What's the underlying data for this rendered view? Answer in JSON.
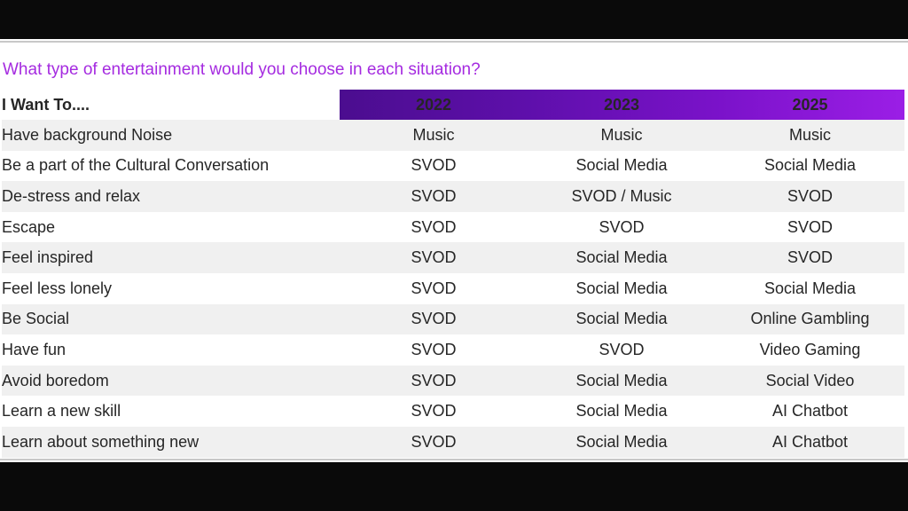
{
  "question": "What type of entertainment would you choose in each situation?",
  "colors": {
    "title": "#a52be0",
    "header_start": "#4b0d8f",
    "header_end": "#9b1ee6",
    "row_shade": "#f0f0f0"
  },
  "chart_data": {
    "type": "table",
    "title": "What type of entertainment would you choose in each situation?",
    "row_header": "I Want To....",
    "columns": [
      "2022",
      "2023",
      "2025"
    ],
    "rows": [
      {
        "label": "Have background Noise",
        "values": [
          "Music",
          "Music",
          "Music"
        ]
      },
      {
        "label": "Be a part of the Cultural Conversation",
        "values": [
          "SVOD",
          "Social Media",
          "Social Media"
        ]
      },
      {
        "label": "De-stress and relax",
        "values": [
          "SVOD",
          "SVOD / Music",
          "SVOD"
        ]
      },
      {
        "label": "Escape",
        "values": [
          "SVOD",
          "SVOD",
          "SVOD"
        ]
      },
      {
        "label": "Feel inspired",
        "values": [
          "SVOD",
          "Social Media",
          "SVOD"
        ]
      },
      {
        "label": "Feel less lonely",
        "values": [
          "SVOD",
          "Social Media",
          "Social Media"
        ]
      },
      {
        "label": "Be Social",
        "values": [
          "SVOD",
          "Social Media",
          "Online Gambling"
        ]
      },
      {
        "label": "Have fun",
        "values": [
          "SVOD",
          "SVOD",
          "Video Gaming"
        ]
      },
      {
        "label": "Avoid boredom",
        "values": [
          "SVOD",
          "Social Media",
          "Social Video"
        ]
      },
      {
        "label": "Learn a new skill",
        "values": [
          "SVOD",
          "Social Media",
          "AI Chatbot"
        ]
      },
      {
        "label": "Learn about something new",
        "values": [
          "SVOD",
          "Social Media",
          "AI Chatbot"
        ]
      }
    ]
  }
}
